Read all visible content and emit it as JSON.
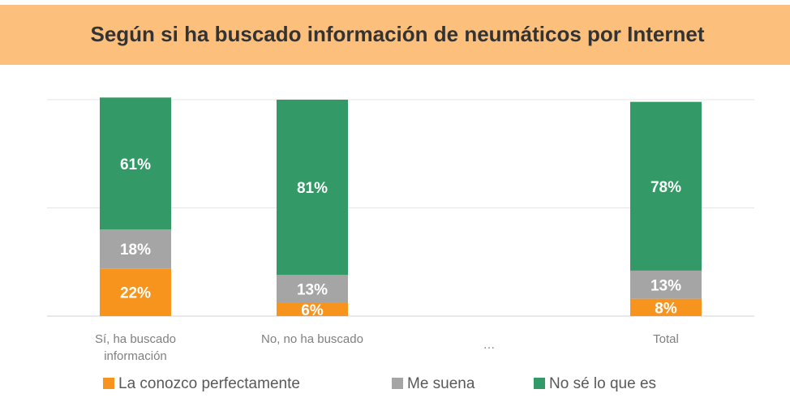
{
  "chart_data": {
    "type": "stacked_bar",
    "title": "Según si ha buscado información de neumáticos por Internet",
    "categories": [
      "Sí, ha buscado información",
      "No, no ha buscado",
      "…",
      "Total"
    ],
    "series": [
      {
        "name": "La conozco perfectamente",
        "color": "#f7941d",
        "values": [
          22,
          6,
          null,
          8
        ],
        "value_labels": [
          "22%",
          "6%",
          null,
          "8%"
        ]
      },
      {
        "name": "Me suena",
        "color": "#a5a5a5",
        "values": [
          18,
          13,
          null,
          13
        ],
        "value_labels": [
          "18%",
          "13%",
          null,
          "13%"
        ]
      },
      {
        "name": "No sé lo que es",
        "color": "#339966",
        "values": [
          61,
          81,
          null,
          78
        ],
        "value_labels": [
          "61%",
          "81%",
          null,
          "78%"
        ]
      }
    ],
    "ylim": [
      0,
      100
    ],
    "yticks": [
      0,
      50,
      100
    ],
    "grid": true,
    "legend": "bottom"
  }
}
